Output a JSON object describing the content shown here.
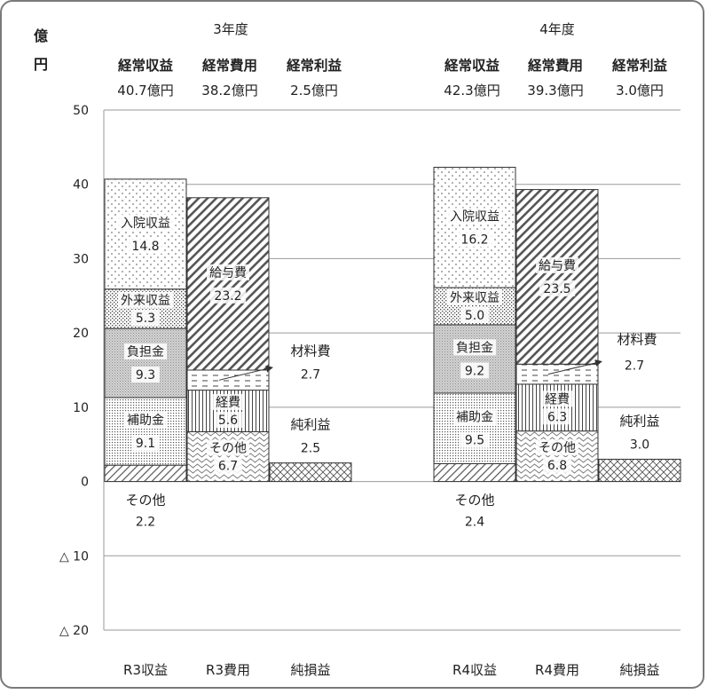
{
  "chart_data": {
    "type": "bar",
    "y_unit": [
      "億",
      "円"
    ],
    "yticks": [
      {
        "value": 50,
        "label": "50"
      },
      {
        "value": 40,
        "label": "40"
      },
      {
        "value": 30,
        "label": "30"
      },
      {
        "value": 20,
        "label": "20"
      },
      {
        "value": 10,
        "label": "10"
      },
      {
        "value": 0,
        "label": "0"
      },
      {
        "value": -10,
        "label": "△ 10"
      },
      {
        "value": -20,
        "label": "△ 20"
      }
    ],
    "ylim": [
      -20,
      50
    ],
    "grid": true,
    "groups": [
      {
        "year": "3年度",
        "summary": [
          {
            "name": "経常収益",
            "amount": "40.7億円"
          },
          {
            "name": "経常費用",
            "amount": "38.2億円"
          },
          {
            "name": "経常利益",
            "amount": "2.5億円"
          }
        ],
        "bars": [
          {
            "category": "R3収益",
            "segments": [
              {
                "name": "その他",
                "value": 2.2,
                "label_below": true
              },
              {
                "name": "補助金",
                "value": 9.1
              },
              {
                "name": "負担金",
                "value": 9.3
              },
              {
                "name": "外来収益",
                "value": 5.3
              },
              {
                "name": "入院収益",
                "value": 14.8
              }
            ]
          },
          {
            "category": "R3費用",
            "segments": [
              {
                "name": "その他",
                "value": 6.7
              },
              {
                "name": "経費",
                "value": 5.6
              },
              {
                "name": "材料費",
                "value": 2.7,
                "label_outside": true
              },
              {
                "name": "給与費",
                "value": 23.2
              }
            ]
          },
          {
            "category": "純損益",
            "segments": [
              {
                "name": "純利益",
                "value": 2.5,
                "label_above": true
              }
            ]
          }
        ]
      },
      {
        "year": "4年度",
        "summary": [
          {
            "name": "経常収益",
            "amount": "42.3億円"
          },
          {
            "name": "経常費用",
            "amount": "39.3億円"
          },
          {
            "name": "経常利益",
            "amount": "3.0億円"
          }
        ],
        "bars": [
          {
            "category": "R4収益",
            "segments": [
              {
                "name": "その他",
                "value": 2.4,
                "label_below": true
              },
              {
                "name": "補助金",
                "value": 9.5
              },
              {
                "name": "負担金",
                "value": 9.2
              },
              {
                "name": "外来収益",
                "value": 5.0
              },
              {
                "name": "入院収益",
                "value": 16.2
              }
            ]
          },
          {
            "category": "R4費用",
            "segments": [
              {
                "name": "その他",
                "value": 6.8
              },
              {
                "name": "経費",
                "value": 6.3
              },
              {
                "name": "材料費",
                "value": 2.7,
                "label_outside": true
              },
              {
                "name": "給与費",
                "value": 23.5
              }
            ]
          },
          {
            "category": "純損益",
            "segments": [
              {
                "name": "純利益",
                "value": 3.0,
                "label_above": true
              }
            ]
          }
        ]
      }
    ]
  }
}
